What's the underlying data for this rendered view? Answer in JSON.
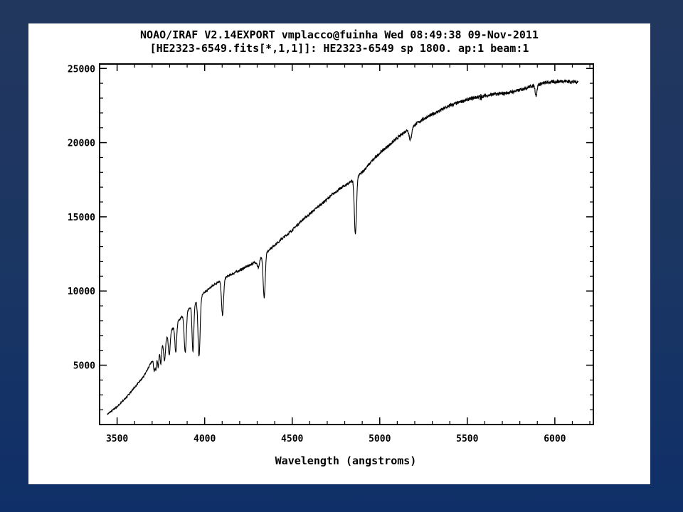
{
  "slide": {
    "background_top": "#22375e",
    "background_bottom": "#0f2f68",
    "panel_color": "#ffffff"
  },
  "chart_data": {
    "type": "line",
    "title_lines": [
      "NOAO/IRAF V2.14EXPORT vmplacco@fuinha Wed 08:49:38 09-Nov-2011",
      "[HE2323-6549.fits[*,1,1]]: HE2323-6549 sp 1800. ap:1 beam:1"
    ],
    "xlabel": "Wavelength (angstroms)",
    "ylabel": "",
    "xlim": [
      3400,
      6220
    ],
    "ylim": [
      1000,
      25300
    ],
    "x_ticks": [
      3500,
      4000,
      4500,
      5000,
      5500,
      6000
    ],
    "y_ticks": [
      5000,
      10000,
      15000,
      20000,
      25000
    ],
    "x_tick_labels": [
      "3500",
      "4000",
      "4500",
      "5000",
      "5500",
      "6000"
    ],
    "y_tick_labels": [
      "5000",
      "10000",
      "15000",
      "20000",
      "25000"
    ],
    "grid": false,
    "legend": "none",
    "line_color": "#000000",
    "series": [
      {
        "continuum": [
          [
            3445,
            1700
          ],
          [
            3500,
            2200
          ],
          [
            3550,
            2800
          ],
          [
            3600,
            3500
          ],
          [
            3650,
            4200
          ],
          [
            3700,
            5300
          ],
          [
            3750,
            6300
          ],
          [
            3800,
            7200
          ],
          [
            3850,
            8000
          ],
          [
            3900,
            8700
          ],
          [
            3950,
            9300
          ],
          [
            4000,
            9900
          ],
          [
            4050,
            10400
          ],
          [
            4100,
            10800
          ],
          [
            4150,
            11100
          ],
          [
            4200,
            11400
          ],
          [
            4250,
            11700
          ],
          [
            4300,
            12000
          ],
          [
            4350,
            12600
          ],
          [
            4400,
            13100
          ],
          [
            4450,
            13600
          ],
          [
            4500,
            14100
          ],
          [
            4550,
            14700
          ],
          [
            4600,
            15200
          ],
          [
            4650,
            15700
          ],
          [
            4700,
            16200
          ],
          [
            4750,
            16700
          ],
          [
            4800,
            17100
          ],
          [
            4850,
            17500
          ],
          [
            4900,
            18000
          ],
          [
            4950,
            18700
          ],
          [
            5000,
            19300
          ],
          [
            5050,
            19800
          ],
          [
            5100,
            20300
          ],
          [
            5150,
            20800
          ],
          [
            5200,
            21200
          ],
          [
            5250,
            21600
          ],
          [
            5300,
            21900
          ],
          [
            5350,
            22200
          ],
          [
            5400,
            22500
          ],
          [
            5450,
            22700
          ],
          [
            5500,
            22900
          ],
          [
            5550,
            23050
          ],
          [
            5600,
            23150
          ],
          [
            5650,
            23250
          ],
          [
            5700,
            23300
          ],
          [
            5750,
            23400
          ],
          [
            5800,
            23550
          ],
          [
            5850,
            23750
          ],
          [
            5900,
            23900
          ],
          [
            5950,
            24050
          ],
          [
            6000,
            24100
          ],
          [
            6050,
            24150
          ],
          [
            6100,
            24100
          ],
          [
            6135,
            24100
          ]
        ],
        "features": [
          {
            "center": 3712,
            "depth": 900,
            "width": 4
          },
          {
            "center": 3722,
            "depth": 1000,
            "width": 4
          },
          {
            "center": 3735,
            "depth": 1100,
            "width": 4
          },
          {
            "center": 3750,
            "depth": 1200,
            "width": 4
          },
          {
            "center": 3771,
            "depth": 1400,
            "width": 5
          },
          {
            "center": 3798,
            "depth": 1500,
            "width": 5
          },
          {
            "center": 3835,
            "depth": 1900,
            "width": 5
          },
          {
            "center": 3889,
            "depth": 2700,
            "width": 6
          },
          {
            "center": 3933,
            "depth": 3200,
            "width": 5
          },
          {
            "center": 3968,
            "depth": 3900,
            "width": 6
          },
          {
            "center": 4102,
            "depth": 2400,
            "width": 6
          },
          {
            "center": 4307,
            "depth": 500,
            "width": 6
          },
          {
            "center": 4340,
            "depth": 2900,
            "width": 6
          },
          {
            "center": 4861,
            "depth": 3800,
            "width": 6
          },
          {
            "center": 5175,
            "depth": 800,
            "width": 7
          },
          {
            "center": 5577,
            "depth": 1200,
            "width": 2
          },
          {
            "center": 5577,
            "depth": -1300,
            "width": 1.5
          },
          {
            "center": 5893,
            "depth": 700,
            "width": 5
          }
        ]
      }
    ]
  }
}
